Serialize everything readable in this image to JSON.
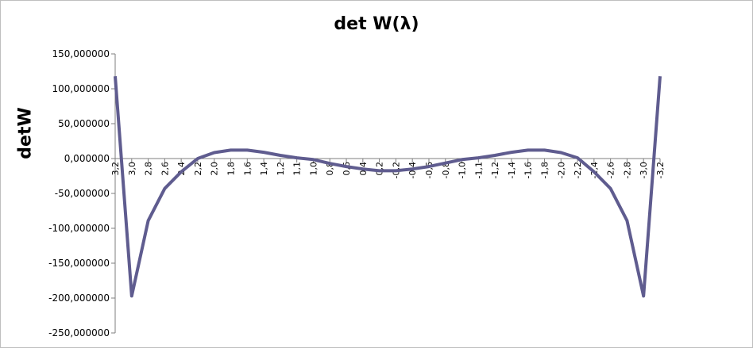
{
  "chart_data": {
    "type": "line",
    "title": "det W(λ)",
    "xlabel": "",
    "ylabel": "detW",
    "ylim": [
      -250000000,
      150000000
    ],
    "yticks": [
      {
        "value": 150000000,
        "label": "150,000000"
      },
      {
        "value": 100000000,
        "label": "100,000000"
      },
      {
        "value": 50000000,
        "label": "50,000000"
      },
      {
        "value": 0,
        "label": "0,000000"
      },
      {
        "value": -50000000,
        "label": "-50,000000"
      },
      {
        "value": -100000000,
        "label": "-100,000000"
      },
      {
        "value": -150000000,
        "label": "-150,000000"
      },
      {
        "value": -200000000,
        "label": "-200,000000"
      },
      {
        "value": -250000000,
        "label": "-250,000000"
      }
    ],
    "categories": [
      "3,2",
      "3,0",
      "2,8",
      "2,6",
      "2,4",
      "2,2",
      "2,0",
      "1,8",
      "1,6",
      "1,4",
      "1,2",
      "1,1",
      "1,0",
      "0,8",
      "0,6",
      "0,4",
      "0,2",
      "-0,2",
      "-0,4",
      "-0,6",
      "-0,8",
      "-1,0",
      "-1,1",
      "-1,2",
      "-1,4",
      "-1,6",
      "-1,8",
      "-2,0",
      "-2,2",
      "-2,4",
      "-2,6",
      "-2,8",
      "-3,0",
      "-3,2"
    ],
    "series": [
      {
        "values": [
          118000000,
          -197000000,
          -89000000,
          -43000000,
          -19000000,
          0,
          8500000,
          12000000,
          12000000,
          9000000,
          4500000,
          1000000,
          -1500000,
          -7000000,
          -11500000,
          -15000000,
          -17500000,
          -17500000,
          -15000000,
          -11500000,
          -6500000,
          -1500000,
          1000000,
          4500000,
          9000000,
          12000000,
          12000000,
          8500000,
          1000000,
          -19000000,
          -43000000,
          -89000000,
          -197000000,
          118000000
        ],
        "color": "#5f5c8f"
      }
    ],
    "grid": false,
    "legend": "none"
  }
}
